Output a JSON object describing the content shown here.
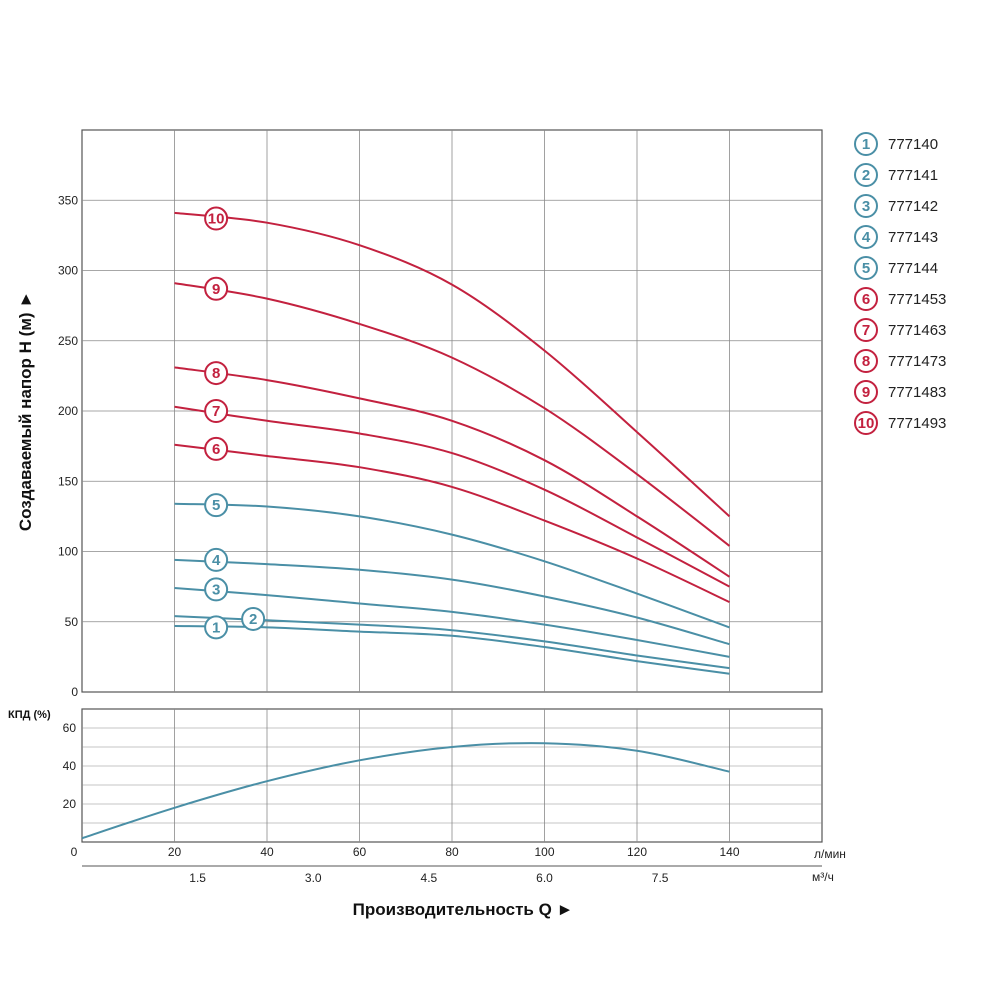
{
  "colors": {
    "blue": "#4a8fa6",
    "red": "#c3213f",
    "grid": "#8a8a8a"
  },
  "chart_data": [
    {
      "type": "line",
      "ylabel": "Создаваемый напор H (м) ►",
      "ylim": [
        0,
        400
      ],
      "yticks": [
        0,
        50,
        100,
        150,
        200,
        250,
        300,
        350
      ],
      "xlim": [
        0,
        160
      ],
      "grid": true,
      "legend_position": "right",
      "series": [
        {
          "name": "777140",
          "label": "1",
          "color": "blue",
          "x": [
            20,
            40,
            60,
            80,
            100,
            120,
            140
          ],
          "y": [
            47,
            46,
            43,
            40,
            32,
            22,
            13
          ],
          "label_at": [
            29,
            46
          ]
        },
        {
          "name": "777141",
          "label": "2",
          "color": "blue",
          "x": [
            20,
            40,
            60,
            80,
            100,
            120,
            140
          ],
          "y": [
            54,
            51,
            48,
            44,
            36,
            26,
            17
          ],
          "label_at": [
            37,
            52
          ]
        },
        {
          "name": "777142",
          "label": "3",
          "color": "blue",
          "x": [
            20,
            40,
            60,
            80,
            100,
            120,
            140
          ],
          "y": [
            74,
            69,
            63,
            57,
            48,
            37,
            25
          ],
          "label_at": [
            29,
            73
          ]
        },
        {
          "name": "777143",
          "label": "4",
          "color": "blue",
          "x": [
            20,
            40,
            60,
            80,
            100,
            120,
            140
          ],
          "y": [
            94,
            91,
            87,
            80,
            68,
            53,
            34
          ],
          "label_at": [
            29,
            94
          ]
        },
        {
          "name": "777144",
          "label": "5",
          "color": "blue",
          "x": [
            20,
            40,
            60,
            80,
            100,
            120,
            140
          ],
          "y": [
            134,
            132,
            125,
            112,
            93,
            70,
            46
          ],
          "label_at": [
            29,
            133
          ]
        },
        {
          "name": "7771453",
          "label": "6",
          "color": "red",
          "x": [
            20,
            40,
            60,
            80,
            100,
            120,
            140
          ],
          "y": [
            176,
            168,
            160,
            146,
            122,
            95,
            64
          ],
          "label_at": [
            29,
            173
          ]
        },
        {
          "name": "7771463",
          "label": "7",
          "color": "red",
          "x": [
            20,
            40,
            60,
            80,
            100,
            120,
            140
          ],
          "y": [
            203,
            193,
            184,
            170,
            144,
            110,
            75
          ],
          "label_at": [
            29,
            200
          ]
        },
        {
          "name": "7771473",
          "label": "8",
          "color": "red",
          "x": [
            20,
            40,
            60,
            80,
            100,
            120,
            140
          ],
          "y": [
            231,
            222,
            209,
            193,
            165,
            125,
            82
          ],
          "label_at": [
            29,
            227
          ]
        },
        {
          "name": "7771483",
          "label": "9",
          "color": "red",
          "x": [
            20,
            40,
            60,
            80,
            100,
            120,
            140
          ],
          "y": [
            291,
            280,
            262,
            238,
            202,
            155,
            104
          ],
          "label_at": [
            29,
            287
          ]
        },
        {
          "name": "7771493",
          "label": "10",
          "color": "red",
          "x": [
            20,
            40,
            60,
            80,
            100,
            120,
            140
          ],
          "y": [
            341,
            334,
            318,
            290,
            243,
            185,
            125
          ],
          "label_at": [
            29,
            337
          ]
        }
      ]
    },
    {
      "type": "line",
      "ylabel": "КПД (%)",
      "ylim": [
        0,
        70
      ],
      "yticks": [
        20,
        40,
        60
      ],
      "xlim": [
        0,
        160
      ],
      "xticks": [
        0,
        20,
        40,
        60,
        80,
        100,
        120,
        140
      ],
      "xunit": "л/мин",
      "x2ticks": [
        {
          "x": 25,
          "label": "1.5"
        },
        {
          "x": 50,
          "label": "3.0"
        },
        {
          "x": 75,
          "label": "4.5"
        },
        {
          "x": 100,
          "label": "6.0"
        },
        {
          "x": 125,
          "label": "7.5"
        }
      ],
      "x2unit": "м³/ч",
      "xlabel": "Производительность Q ►",
      "series": [
        {
          "color": "blue",
          "x": [
            0,
            20,
            40,
            60,
            80,
            100,
            120,
            140
          ],
          "y": [
            2,
            18,
            32,
            43,
            50,
            52,
            48,
            37
          ]
        }
      ]
    }
  ]
}
